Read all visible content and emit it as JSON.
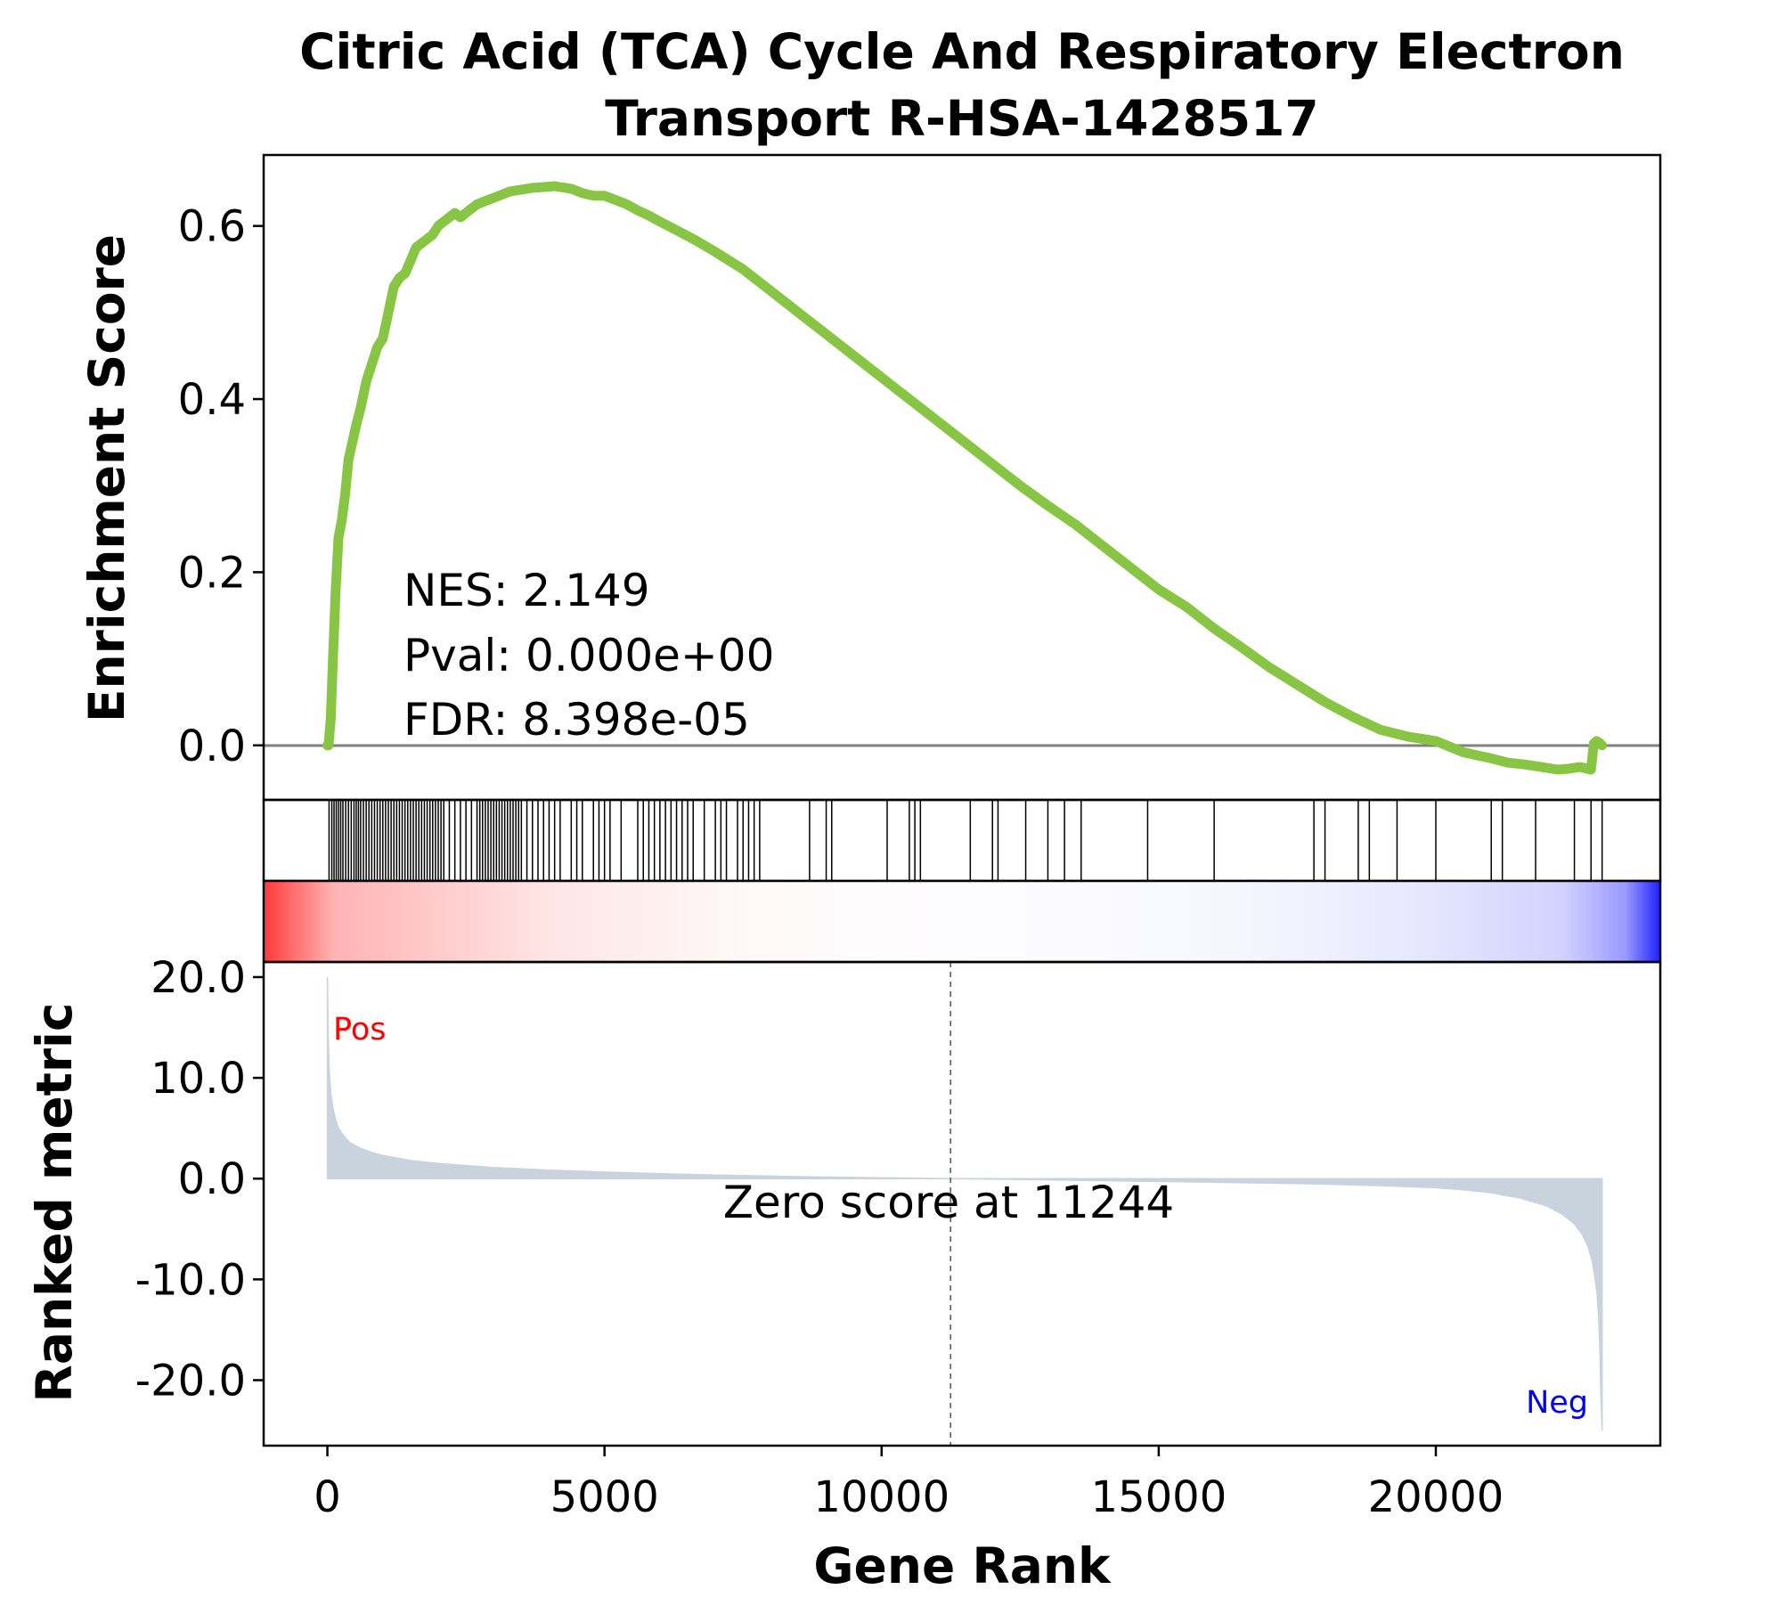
{
  "chart_data": {
    "type": "line",
    "title": "Citric Acid (TCA) Cycle And Respiratory Electron Transport R-HSA-1428517",
    "title_lines": [
      "Citric Acid (TCA) Cycle And Respiratory Electron",
      "Transport R-HSA-1428517"
    ],
    "xlabel": "Gene Rank",
    "xlim": [
      -1150,
      24050
    ],
    "xticks": [
      0,
      5000,
      10000,
      15000,
      20000
    ],
    "xtick_labels": [
      "0",
      "5000",
      "10000",
      "15000",
      "20000"
    ],
    "enrichment": {
      "ylabel": "Enrichment Score",
      "ylim": [
        -0.063,
        0.682
      ],
      "yticks": [
        0.0,
        0.2,
        0.4,
        0.6
      ],
      "ytick_labels": [
        "0.0",
        "0.2",
        "0.4",
        "0.6"
      ],
      "color": "#88c544",
      "zero_line_color": "#808080",
      "series": [
        {
          "x": [
            0,
            20,
            60,
            100,
            150,
            200,
            260,
            320,
            380,
            450,
            520,
            600,
            700,
            800,
            900,
            1000,
            1100,
            1200,
            1300,
            1400,
            1500,
            1600,
            1700,
            1800,
            1900,
            2000,
            2100,
            2200,
            2300,
            2400,
            2500,
            2700,
            2900,
            3100,
            3300,
            3500,
            3700,
            3900,
            4100,
            4200,
            4400,
            4600,
            4800,
            5000,
            5200,
            5400,
            5600,
            5800,
            6000,
            6300,
            6600,
            7000,
            7500,
            8000,
            8500,
            9000,
            9500,
            10000,
            10500,
            11000,
            11500,
            12000,
            12500,
            13000,
            13500,
            14000,
            14500,
            15000,
            15500,
            16000,
            16500,
            17000,
            17500,
            18000,
            18500,
            19000,
            19500,
            20000,
            20500,
            21000,
            21300,
            21600,
            21900,
            22200,
            22400,
            22600,
            22800,
            22850,
            22900,
            22950,
            23000
          ],
          "values": [
            0.0,
            0.0,
            0.03,
            0.1,
            0.18,
            0.24,
            0.26,
            0.29,
            0.33,
            0.35,
            0.37,
            0.39,
            0.42,
            0.44,
            0.46,
            0.47,
            0.5,
            0.53,
            0.54,
            0.545,
            0.56,
            0.575,
            0.58,
            0.585,
            0.59,
            0.6,
            0.605,
            0.61,
            0.615,
            0.61,
            0.615,
            0.625,
            0.63,
            0.635,
            0.64,
            0.642,
            0.644,
            0.645,
            0.646,
            0.645,
            0.643,
            0.638,
            0.635,
            0.635,
            0.63,
            0.625,
            0.618,
            0.612,
            0.605,
            0.595,
            0.585,
            0.57,
            0.55,
            0.525,
            0.5,
            0.475,
            0.45,
            0.425,
            0.4,
            0.375,
            0.35,
            0.325,
            0.3,
            0.277,
            0.255,
            0.23,
            0.205,
            0.18,
            0.16,
            0.135,
            0.113,
            0.09,
            0.07,
            0.05,
            0.033,
            0.018,
            0.01,
            0.005,
            -0.008,
            -0.015,
            -0.02,
            -0.022,
            -0.025,
            -0.028,
            -0.027,
            -0.025,
            -0.028,
            0.002,
            0.005,
            0.003,
            0.0
          ]
        }
      ],
      "annotations": [
        "NES: 2.149",
        "Pval: 0.000e+00",
        "FDR: 8.398e-05"
      ]
    },
    "hits": {
      "positions": [
        30,
        80,
        120,
        160,
        200,
        240,
        280,
        330,
        380,
        430,
        480,
        520,
        560,
        600,
        650,
        700,
        750,
        800,
        850,
        900,
        950,
        1000,
        1050,
        1100,
        1150,
        1200,
        1250,
        1300,
        1350,
        1400,
        1450,
        1500,
        1550,
        1600,
        1650,
        1700,
        1750,
        1800,
        1850,
        1900,
        1950,
        2000,
        2050,
        2100,
        2200,
        2300,
        2400,
        2500,
        2600,
        2700,
        2750,
        2800,
        2850,
        2900,
        2950,
        3000,
        3050,
        3100,
        3150,
        3200,
        3250,
        3300,
        3350,
        3400,
        3450,
        3500,
        3600,
        3700,
        3800,
        3900,
        4000,
        4100,
        4200,
        4400,
        4500,
        4600,
        4800,
        4900,
        5000,
        5100,
        5300,
        5600,
        5700,
        5800,
        5900,
        6000,
        6100,
        6200,
        6300,
        6400,
        6500,
        6600,
        6800,
        7000,
        7100,
        7200,
        7400,
        7500,
        7600,
        7700,
        7800,
        8700,
        9000,
        9100,
        10100,
        10500,
        10600,
        10700,
        11600,
        12000,
        12100,
        12600,
        13000,
        13300,
        13600,
        14800,
        16000,
        17800,
        18000,
        18600,
        18800,
        19300,
        20000,
        21000,
        21200,
        21800,
        22500,
        22800,
        23000
      ]
    },
    "ranked_metric": {
      "ylabel": "Ranked metric",
      "ylim": [
        -26.5,
        21.5
      ],
      "yticks": [
        20,
        10,
        0,
        -10,
        -20
      ],
      "ytick_labels": [
        "20.0",
        "10.0",
        "0.0",
        "-10.0",
        "-20.0"
      ],
      "fill_color": "#c8d3de",
      "x": [
        0,
        15,
        30,
        60,
        100,
        150,
        200,
        300,
        400,
        600,
        800,
        1000,
        1500,
        2000,
        3000,
        4000,
        5000,
        6000,
        7000,
        8000,
        9000,
        10000,
        11244,
        12000,
        13000,
        14000,
        15000,
        16000,
        17000,
        18000,
        19000,
        20000,
        20500,
        21000,
        21500,
        22000,
        22300,
        22500,
        22650,
        22750,
        22820,
        22870,
        22910,
        22940,
        22960,
        22975,
        23000
      ],
      "values": [
        20.0,
        14.0,
        11.0,
        8.5,
        7.0,
        5.8,
        5.0,
        4.2,
        3.6,
        3.0,
        2.6,
        2.3,
        1.8,
        1.5,
        1.1,
        0.85,
        0.65,
        0.5,
        0.35,
        0.25,
        0.15,
        0.07,
        0.0,
        -0.05,
        -0.12,
        -0.2,
        -0.28,
        -0.36,
        -0.45,
        -0.55,
        -0.7,
        -0.9,
        -1.1,
        -1.4,
        -1.9,
        -2.7,
        -3.6,
        -4.5,
        -5.6,
        -6.8,
        -8.2,
        -9.8,
        -11.5,
        -14.0,
        -17.0,
        -21.0,
        -25.0
      ],
      "zero_cross": 11244,
      "zero_label": "Zero score at 11244",
      "pos_label": "Pos",
      "neg_label": "Neg",
      "pos_color": "#ff0000",
      "neg_color": "#0000ff"
    },
    "colorbar": {
      "cmap": "bwr_r",
      "from": "#ff0000",
      "mid": "#ffffff",
      "to": "#0000ff"
    }
  }
}
